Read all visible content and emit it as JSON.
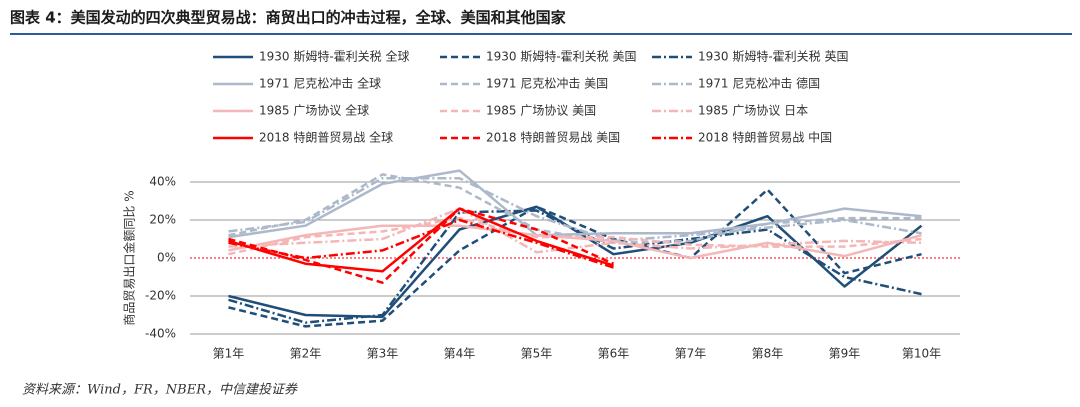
{
  "chart_data": {
    "type": "line",
    "title": "图表 4：美国发动的四次典型贸易战：商贸出口的冲击过程，全球、美国和其他国家",
    "y_label": "商品贸易出口金额同比 %",
    "source": "资料来源：Wind，FR，NBER，中信建投证券",
    "categories": [
      "第1年",
      "第2年",
      "第3年",
      "第4年",
      "第5年",
      "第6年",
      "第7年",
      "第8年",
      "第9年",
      "第10年"
    ],
    "ylim": [
      -40,
      40
    ],
    "yticks": [
      {
        "value": -40,
        "label": "-40%"
      },
      {
        "value": -20,
        "label": "-20%"
      },
      {
        "value": 0,
        "label": "0%"
      },
      {
        "value": 20,
        "label": "20%"
      },
      {
        "value": 40,
        "label": "40%"
      }
    ],
    "grid": true,
    "series": [
      {
        "name": "1930 斯姆特-霍利关税 全球",
        "color": "#1f4e79",
        "dash": "solid",
        "values": [
          -20,
          -30,
          -31,
          15,
          27,
          2,
          8,
          22,
          -15,
          17
        ]
      },
      {
        "name": "1930 斯姆特-霍利关税 美国",
        "color": "#1f4e79",
        "dash": "dashed",
        "values": [
          -26,
          -36,
          -33,
          4,
          27,
          10,
          0,
          36,
          -8,
          2
        ]
      },
      {
        "name": "1930 斯姆特-霍利关税 英国",
        "color": "#1f4e79",
        "dash": "dashdot",
        "values": [
          -22,
          -34,
          -30,
          24,
          25,
          5,
          10,
          15,
          -10,
          -19
        ]
      },
      {
        "name": "1971 尼克松冲击 全球",
        "color": "#adb9ca",
        "dash": "solid",
        "values": [
          11,
          17,
          39,
          46,
          12,
          13,
          13,
          18,
          26,
          22
        ]
      },
      {
        "name": "1971 尼克松冲击 美国",
        "color": "#adb9ca",
        "dash": "dashed",
        "values": [
          12,
          20,
          44,
          37,
          15,
          8,
          9,
          18,
          21,
          21
        ]
      },
      {
        "name": "1971 尼克松冲击 德国",
        "color": "#adb9ca",
        "dash": "dashdot",
        "values": [
          14,
          19,
          42,
          42,
          22,
          9,
          12,
          16,
          20,
          13
        ]
      },
      {
        "name": "1985 广场协议 全球",
        "color": "#f4b6b6",
        "dash": "solid",
        "values": [
          4,
          12,
          17,
          17,
          12,
          9,
          0,
          8,
          1,
          12
        ]
      },
      {
        "name": "1985 广场协议 美国",
        "color": "#f4b6b6",
        "dash": "dashed",
        "values": [
          2,
          11,
          14,
          21,
          11,
          11,
          7,
          6,
          6,
          10
        ]
      },
      {
        "name": "1985 广场协议 日本",
        "color": "#f4b6b6",
        "dash": "dashdot",
        "values": [
          6,
          8,
          10,
          26,
          3,
          8,
          5,
          7,
          9,
          8
        ]
      },
      {
        "name": "2018 特朗普贸易战 全球",
        "color": "#ff0000",
        "dash": "solid",
        "values": [
          9,
          -3,
          -7,
          26,
          9,
          -4,
          null,
          null,
          null,
          null
        ]
      },
      {
        "name": "2018 特朗普贸易战 美国",
        "color": "#ff0000",
        "dash": "dashed",
        "values": [
          10,
          -1,
          -13,
          26,
          15,
          -3,
          null,
          null,
          null,
          null
        ]
      },
      {
        "name": "2018 特朗普贸易战 中国",
        "color": "#ff0000",
        "dash": "dashdot",
        "values": [
          8,
          0,
          4,
          20,
          8,
          -5,
          null,
          null,
          null,
          null
        ]
      }
    ]
  }
}
